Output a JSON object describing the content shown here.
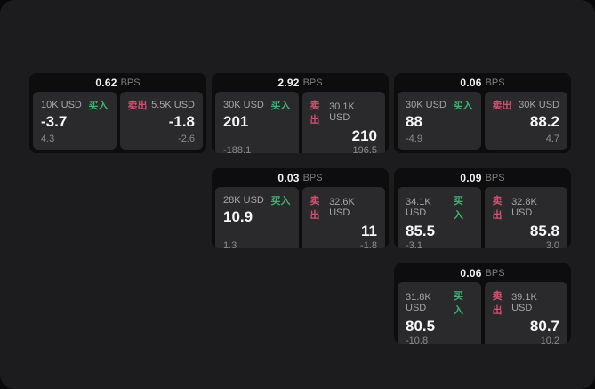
{
  "labels": {
    "bps_unit": "BPS",
    "buy": "买入",
    "sell": "卖出"
  },
  "colors": {
    "buy_green": "#3eb370",
    "sell_red": "#d5506e",
    "panel_bg": "#1c1c1e",
    "card_bg": "#0d0d0e",
    "tile_bg": "#2a2a2c"
  },
  "cards": [
    {
      "bps": "0.62",
      "buy": {
        "amount": "10K USD",
        "price": "-3.7",
        "delta": "4.3"
      },
      "sell": {
        "amount": "5.5K USD",
        "price": "-1.8",
        "delta": "-2.6"
      }
    },
    {
      "bps": "2.92",
      "buy": {
        "amount": "30K USD",
        "price": "201",
        "delta": "-188.1"
      },
      "sell": {
        "amount": "30.1K USD",
        "price": "210",
        "delta": "196.5"
      }
    },
    {
      "bps": "0.06",
      "buy": {
        "amount": "30K USD",
        "price": "88",
        "delta": "-4.9"
      },
      "sell": {
        "amount": "30K USD",
        "price": "88.2",
        "delta": "4.7"
      }
    },
    {
      "bps": "0.03",
      "buy": {
        "amount": "28K USD",
        "price": "10.9",
        "delta": "1.3"
      },
      "sell": {
        "amount": "32.6K USD",
        "price": "11",
        "delta": "-1.8"
      }
    },
    {
      "bps": "0.09",
      "buy": {
        "amount": "34.1K USD",
        "price": "85.5",
        "delta": "-3.1"
      },
      "sell": {
        "amount": "32.8K USD",
        "price": "85.8",
        "delta": "3.0"
      }
    },
    {
      "bps": "0.06",
      "buy": {
        "amount": "31.8K USD",
        "price": "80.5",
        "delta": "-10.8"
      },
      "sell": {
        "amount": "39.1K USD",
        "price": "80.7",
        "delta": "10.2"
      }
    }
  ]
}
